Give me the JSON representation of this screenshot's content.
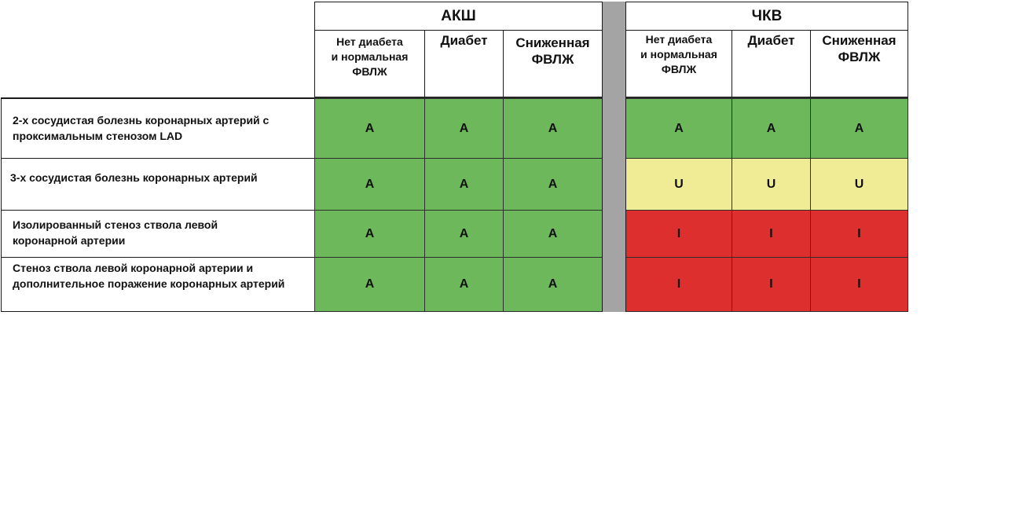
{
  "groups": [
    {
      "title": "АКШ"
    },
    {
      "title": "ЧКВ"
    }
  ],
  "subheaders": [
    {
      "label": "Нет диабета\nи нормальная\nФВЛЖ"
    },
    {
      "label": "Диабет"
    },
    {
      "label": "Сниженная\nФВЛЖ"
    }
  ],
  "rows": [
    {
      "label": "2-х сосудистая болезнь коронарных артерий с проксимальным стенозом LAD",
      "akш": [
        "A",
        "A",
        "A"
      ],
      "pci": [
        "A",
        "A",
        "A"
      ]
    },
    {
      "label": "3-х сосудистая болезнь коронарных артерий",
      "akш": [
        "A",
        "A",
        "A"
      ],
      "pci": [
        "U",
        "U",
        "U"
      ]
    },
    {
      "label": "Изолированный стеноз ствола левой коронарной артерии",
      "akш": [
        "A",
        "A",
        "A"
      ],
      "pci": [
        "I",
        "I",
        "I"
      ]
    },
    {
      "label": "Стеноз ствола левой коронарной артерии и дополнительное поражение коронарных артерий",
      "akш": [
        "A",
        "A",
        "A"
      ],
      "pci": [
        "I",
        "I",
        "I"
      ]
    }
  ],
  "colors": {
    "A": "#6cb85a",
    "U": "#f0ec96",
    "I": "#de2f2f",
    "divider": "#a4a4a4"
  }
}
